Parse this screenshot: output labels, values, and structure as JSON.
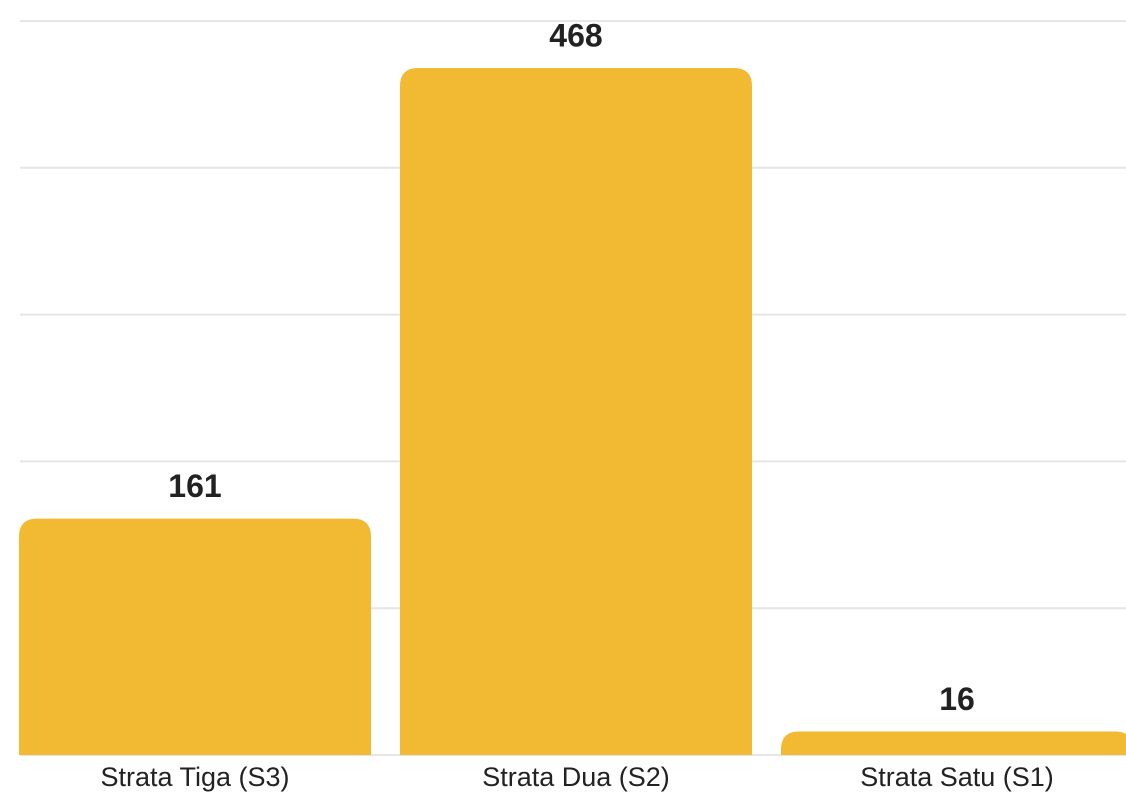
{
  "chart_data": {
    "type": "bar",
    "categories": [
      "Strata Tiga (S3)",
      "Strata Dua (S2)",
      "Strata Satu (S1)"
    ],
    "values": [
      161,
      468,
      16
    ],
    "color": "#f2b933",
    "ylim": [
      0,
      500
    ],
    "yticks": [
      0,
      100,
      200,
      300,
      400,
      500
    ],
    "grid": true
  }
}
